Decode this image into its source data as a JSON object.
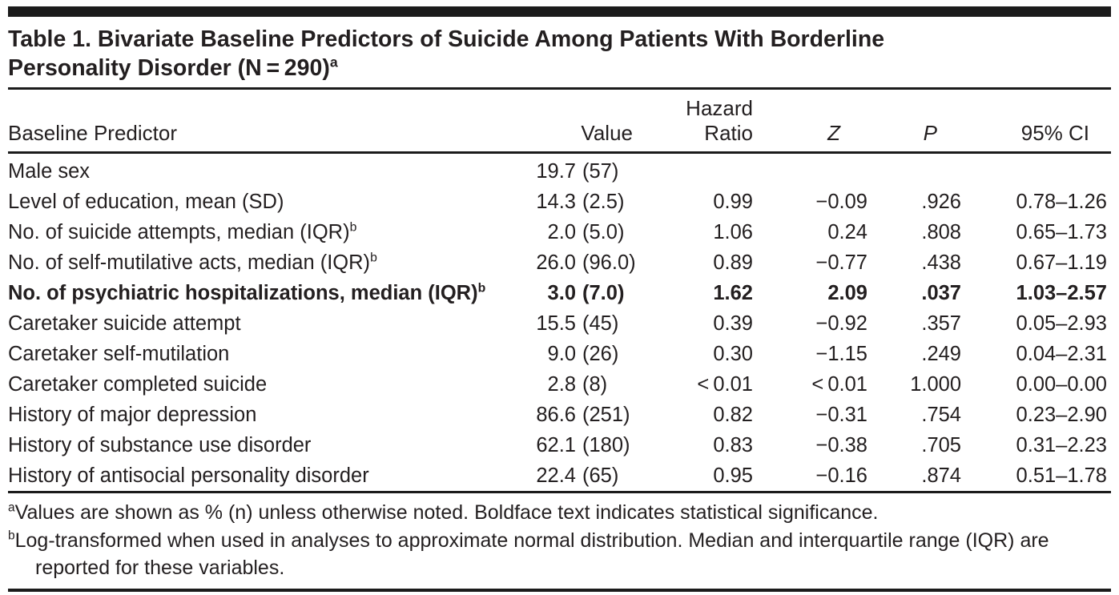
{
  "title": {
    "line1": "Table 1. Bivariate Baseline Predictors of Suicide Among Patients With Borderline",
    "line2": "Personality Disorder (N = 290)",
    "superscript": "a"
  },
  "columns": {
    "predictor": "Baseline Predictor",
    "value": "Value",
    "hazard_line1": "Hazard",
    "hazard_line2": "Ratio",
    "z": "Z",
    "p": "P",
    "ci": "95% CI"
  },
  "rows": [
    {
      "predictor": "Male sex",
      "sup": "",
      "value_num": "19.7",
      "value_paren": "(57)",
      "hazard": "",
      "z": "",
      "p": "",
      "ci": "",
      "significant": false
    },
    {
      "predictor": "Level of education, mean (SD)",
      "sup": "",
      "value_num": "14.3",
      "value_paren": "(2.5)",
      "hazard": "0.99",
      "z": "−0.09",
      "p": ".926",
      "ci": "0.78–1.26",
      "significant": false
    },
    {
      "predictor": "No. of suicide attempts, median (IQR)",
      "sup": "b",
      "value_num": "2.0",
      "value_paren": "(5.0)",
      "hazard": "1.06",
      "z": "0.24",
      "p": ".808",
      "ci": "0.65–1.73",
      "significant": false
    },
    {
      "predictor": "No. of self-mutilative acts, median (IQR)",
      "sup": "b",
      "value_num": "26.0",
      "value_paren": "(96.0)",
      "hazard": "0.89",
      "z": "−0.77",
      "p": ".438",
      "ci": "0.67–1.19",
      "significant": false
    },
    {
      "predictor": "No. of psychiatric hospitalizations, median (IQR)",
      "sup": "b",
      "value_num": "3.0",
      "value_paren": "(7.0)",
      "hazard": "1.62",
      "z": "2.09",
      "p": ".037",
      "ci": "1.03–2.57",
      "significant": true
    },
    {
      "predictor": "Caretaker suicide attempt",
      "sup": "",
      "value_num": "15.5",
      "value_paren": "(45)",
      "hazard": "0.39",
      "z": "−0.92",
      "p": ".357",
      "ci": "0.05–2.93",
      "significant": false
    },
    {
      "predictor": "Caretaker self-mutilation",
      "sup": "",
      "value_num": "9.0",
      "value_paren": "(26)",
      "hazard": "0.30",
      "z": "−1.15",
      "p": ".249",
      "ci": "0.04–2.31",
      "significant": false
    },
    {
      "predictor": "Caretaker completed suicide",
      "sup": "",
      "value_num": "2.8",
      "value_paren": "(8)",
      "hazard": "< 0.01",
      "z": "< 0.01",
      "p": "1.000",
      "ci": "0.00–0.00",
      "significant": false
    },
    {
      "predictor": "History of major depression",
      "sup": "",
      "value_num": "86.6",
      "value_paren": "(251)",
      "hazard": "0.82",
      "z": "−0.31",
      "p": ".754",
      "ci": "0.23–2.90",
      "significant": false
    },
    {
      "predictor": "History of substance use disorder",
      "sup": "",
      "value_num": "62.1",
      "value_paren": "(180)",
      "hazard": "0.83",
      "z": "−0.38",
      "p": ".705",
      "ci": "0.31–2.23",
      "significant": false
    },
    {
      "predictor": "History of antisocial personality disorder",
      "sup": "",
      "value_num": "22.4",
      "value_paren": "(65)",
      "hazard": "0.95",
      "z": "−0.16",
      "p": ".874",
      "ci": "0.51–1.78",
      "significant": false
    }
  ],
  "footnotes": [
    {
      "marker": "a",
      "text": "Values are shown as % (n) unless otherwise noted. Boldface text indicates statistical significance."
    },
    {
      "marker": "b",
      "text": "Log-transformed when used in analyses to approximate normal distribution. Median and interquartile range (IQR) are reported for these variables."
    }
  ],
  "colors": {
    "text": "#231f20",
    "rule": "#1b1b1b",
    "background": "#ffffff",
    "significance_style": "bold"
  }
}
